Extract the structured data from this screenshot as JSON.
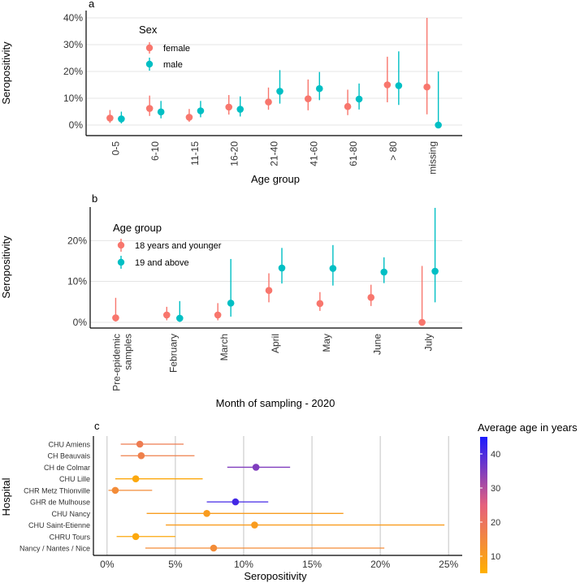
{
  "panels": [
    {
      "letter": "a",
      "ylabel": "Seropositivity",
      "xlabel": "Age group",
      "legend_title": "Sex",
      "tick_labels": [
        "0%",
        "10%",
        "20%",
        "30%",
        "40%"
      ]
    },
    {
      "letter": "b",
      "ylabel": "Seropositivity",
      "xlabel": "Month of sampling - 2020",
      "legend_title": "Age group",
      "tick_labels": [
        "0%",
        "10%",
        "20%"
      ]
    },
    {
      "letter": "c",
      "ylabel": "Hospital",
      "xlabel": "Seropositivity",
      "legend_title": "Average age in years",
      "tick_labels": [
        "0%",
        "5%",
        "10%",
        "15%",
        "20%",
        "25%"
      ]
    }
  ],
  "colors": {
    "female": "#F8766D",
    "male": "#00BFC4",
    "young": "#F8766D",
    "old": "#00BFC4",
    "gradient_low": "#FFB000",
    "gradient_mid": "#E5607D",
    "gradient_high": "#1A1AFF"
  },
  "chart_data": [
    {
      "panel": "a",
      "type": "scatter",
      "subtype": "dot-and-error-bar",
      "categories": [
        "0-5",
        "6-10",
        "11-15",
        "16-20",
        "21-40",
        "41-60",
        "61-80",
        "> 80",
        "missing"
      ],
      "ylim": [
        0,
        40
      ],
      "ylabel": "Seropositivity",
      "xlabel": "Age group",
      "legend_placement": "top-left",
      "series": [
        {
          "name": "female",
          "values": [
            2.6,
            6.2,
            2.9,
            6.7,
            8.6,
            9.8,
            6.9,
            15.0,
            14.2
          ],
          "lower": [
            0.8,
            3.4,
            1.2,
            3.9,
            5.7,
            5.5,
            3.7,
            8.5,
            4.0
          ],
          "upper": [
            5.6,
            11.0,
            6.0,
            11.2,
            14.0,
            17.0,
            13.2,
            25.5,
            40.0
          ]
        },
        {
          "name": "male",
          "values": [
            2.3,
            4.9,
            5.3,
            5.9,
            12.6,
            13.6,
            9.7,
            14.7,
            0
          ],
          "lower": [
            0.6,
            2.5,
            2.9,
            3.2,
            8.0,
            9.3,
            5.8,
            7.5,
            0
          ],
          "upper": [
            5.0,
            9.0,
            9.0,
            10.7,
            20.5,
            19.8,
            15.5,
            27.5,
            20.0
          ]
        }
      ]
    },
    {
      "panel": "b",
      "type": "scatter",
      "subtype": "dot-and-error-bar",
      "categories": [
        "Pre-epidemic samples",
        "February",
        "March",
        "April",
        "May",
        "June",
        "July"
      ],
      "ylim": [
        0,
        28
      ],
      "ylabel": "Seropositivity",
      "xlabel": "Month of sampling - 2020",
      "legend_placement": "top-left",
      "series": [
        {
          "name": "18 years and younger",
          "values": [
            1.1,
            1.8,
            1.8,
            7.8,
            4.6,
            6.1,
            0
          ],
          "lower": [
            0.2,
            0.5,
            0.5,
            4.9,
            2.8,
            4.0,
            0
          ],
          "upper": [
            6.0,
            3.8,
            4.7,
            12.0,
            7.4,
            9.2,
            13.8
          ]
        },
        {
          "name": "19 and above",
          "values": [
            null,
            1.0,
            4.7,
            13.3,
            13.2,
            12.3,
            12.5
          ],
          "lower": [
            null,
            0.1,
            1.4,
            9.5,
            9.0,
            9.6,
            4.9
          ],
          "upper": [
            null,
            5.2,
            15.5,
            18.2,
            18.9,
            15.9,
            28.0
          ]
        }
      ]
    },
    {
      "panel": "c",
      "type": "scatter",
      "subtype": "horizontal-dot-and-error-bar",
      "categories": [
        "CHU Amiens",
        "CH Beauvais",
        "CH de Colmar",
        "CHU Lille",
        "CHR Metz Thionville",
        "GHR de Mulhouse",
        "CHU Nancy",
        "CHU Saint-Etienne",
        "CHRU Tours",
        "Nancy / Nantes / Nice"
      ],
      "xlim": [
        -1,
        26
      ],
      "xticks": [
        0,
        5,
        10,
        15,
        20,
        25
      ],
      "xlabel": "Seropositivity",
      "ylabel": "Hospital",
      "legend_placement": "right",
      "values": [
        2.4,
        2.5,
        10.9,
        2.1,
        0.6,
        9.4,
        7.3,
        10.8,
        2.1,
        7.8
      ],
      "lower": [
        1.0,
        1.0,
        8.8,
        0.6,
        0.1,
        7.3,
        2.9,
        4.3,
        0.7,
        2.8
      ],
      "upper": [
        5.6,
        6.4,
        13.4,
        7.0,
        3.3,
        11.8,
        17.3,
        24.7,
        5.0,
        20.3
      ],
      "avg_age": [
        18,
        17,
        35,
        7,
        14,
        41,
        10,
        10,
        7,
        14
      ],
      "color_scale": {
        "title": "Average age in years",
        "min": 5,
        "max": 45,
        "ticks": [
          10,
          20,
          30,
          40
        ]
      }
    }
  ]
}
